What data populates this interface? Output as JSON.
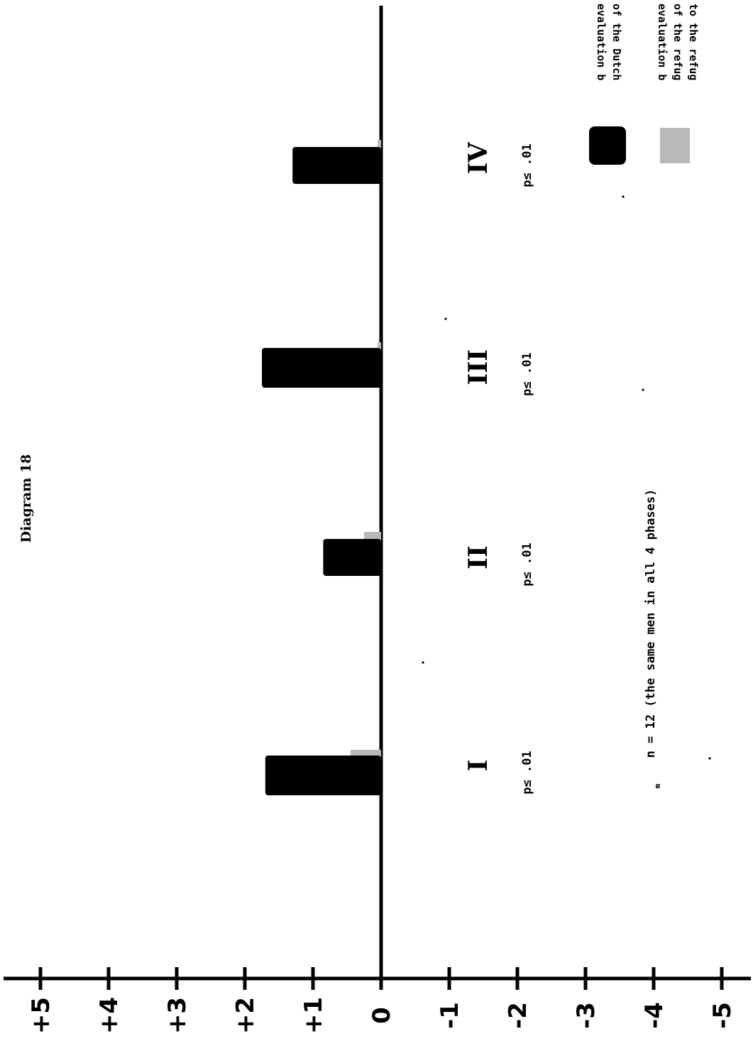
{
  "title": "Diagram 18",
  "note": "n = 12 (the same men in all 4 phases)",
  "note_subscript": "m",
  "legend": [
    {
      "text_lines": [
        "evaluation b",
        "of the Dutch"
      ],
      "color": "#000000",
      "pattern": "solid"
    },
    {
      "text_lines": [
        "evaluation b",
        "of the refug",
        "to the refug"
      ],
      "color": "#b8b8b8",
      "pattern": "stipple"
    }
  ],
  "chart_data": {
    "type": "bar",
    "title": "Diagram 18",
    "categories": [
      "I",
      "II",
      "III",
      "IV"
    ],
    "significance": [
      "p≤ .01",
      "p≤ .01",
      "p≤ .01",
      "p≤ .01"
    ],
    "series": [
      {
        "color": "#000000",
        "values": [
          1.7,
          0.85,
          1.75,
          1.3
        ]
      },
      {
        "color": "#b8b8b8",
        "values": [
          0.45,
          0.25,
          0.05,
          0.05
        ]
      }
    ],
    "y_ticks": [
      "+5",
      "+4",
      "+3",
      "+2",
      "+1",
      "0",
      "-1",
      "-2",
      "-3",
      "-4",
      "-5"
    ],
    "tick_values": [
      5,
      4,
      3,
      2,
      1,
      0,
      -1,
      -2,
      -3,
      -4,
      -5
    ],
    "ylim": [
      -5,
      5
    ],
    "grid": false,
    "legend_position": "right",
    "orientation": "rotated-90"
  }
}
